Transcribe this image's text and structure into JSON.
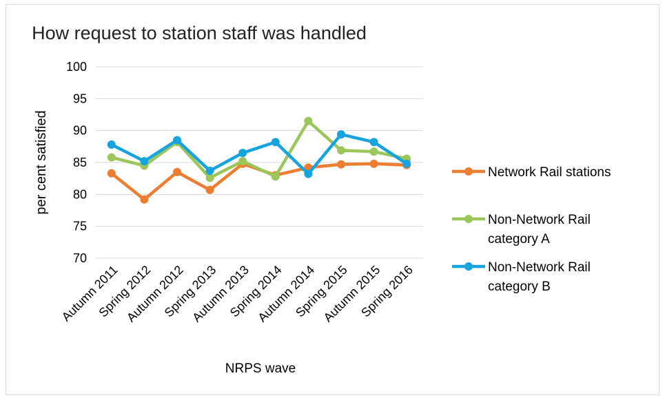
{
  "chart_data": {
    "type": "line",
    "title": "How request to station staff was handled",
    "xlabel": "NRPS wave",
    "ylabel": "per cent satisfied",
    "ylim": [
      70,
      100
    ],
    "yticks": [
      70,
      75,
      80,
      85,
      90,
      95,
      100
    ],
    "grid": true,
    "legend_position": "right",
    "categories": [
      "Autumn 2011",
      "Spring 2012",
      "Autumn 2012",
      "Spring 2013",
      "Autumn 2013",
      "Spring 2014",
      "Autumn 2014",
      "Spring 2015",
      "Autumn 2015",
      "Spring 2016"
    ],
    "series": [
      {
        "name": "Network Rail stations",
        "legend_lines": [
          "Network Rail stations"
        ],
        "color": "#ed7d31",
        "values": [
          83.3,
          79.2,
          83.5,
          80.7,
          84.8,
          83.0,
          84.2,
          84.7,
          84.8,
          84.6
        ]
      },
      {
        "name": "Non-Network Rail category A",
        "legend_lines": [
          "Non-Network Rail",
          "category A"
        ],
        "color": "#9dc65a",
        "values": [
          85.8,
          84.5,
          88.2,
          82.6,
          85.2,
          82.8,
          91.5,
          86.9,
          86.7,
          85.6
        ]
      },
      {
        "name": "Non-Network Rail category B",
        "legend_lines": [
          "Non-Network Rail",
          "category B"
        ],
        "color": "#16a3de",
        "values": [
          87.8,
          85.2,
          88.5,
          83.7,
          86.5,
          88.2,
          83.2,
          89.4,
          88.2,
          84.8
        ]
      }
    ]
  }
}
